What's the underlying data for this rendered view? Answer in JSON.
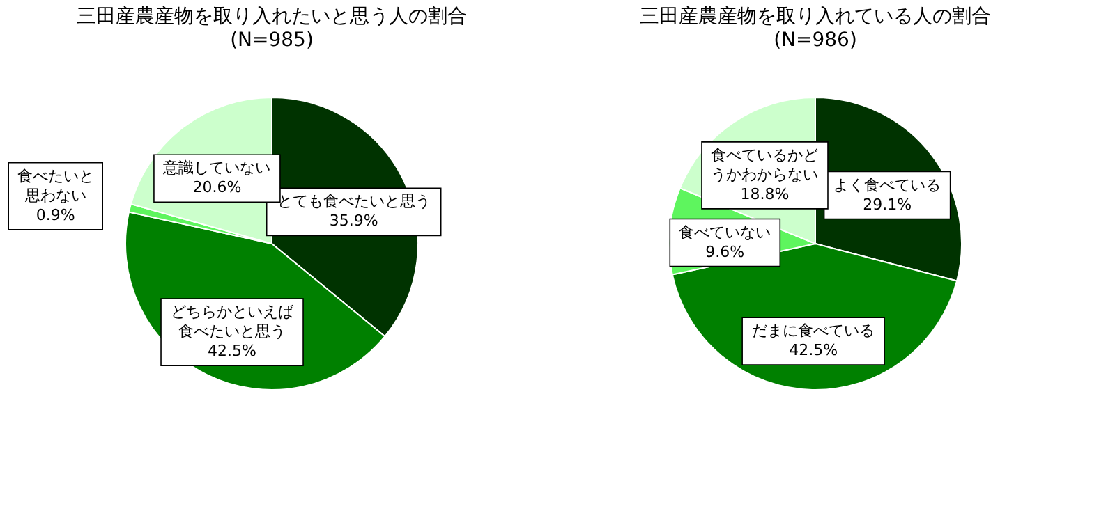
{
  "chart_data": [
    {
      "type": "pie",
      "title": "三田産農産物を取り入れたいと思う人の割合",
      "subtitle": "(N=985)",
      "categories": [
        "とても食べたいと思う",
        "どちらかといえば食べたいと思う",
        "食べたいと思わない",
        "意識していない"
      ],
      "values": [
        35.9,
        42.5,
        0.9,
        20.6
      ],
      "colors": [
        "#003300",
        "#008000",
        "#5ef55e",
        "#ccffcc"
      ],
      "value_labels": [
        "35.9%",
        "42.5%",
        "0.9%",
        "20.6%"
      ],
      "legend": false
    },
    {
      "type": "pie",
      "title": "三田産農産物を取り入れている人の割合",
      "subtitle": "(N=986)",
      "categories": [
        "よく食べている",
        "だまに食べている",
        "食べていない",
        "食べているかどうかわからない"
      ],
      "values": [
        29.1,
        42.5,
        9.6,
        18.8
      ],
      "colors": [
        "#003300",
        "#008000",
        "#5ef55e",
        "#ccffcc"
      ],
      "value_labels": [
        "29.1%",
        "42.5%",
        "9.6%",
        "18.8%"
      ],
      "legend": false
    }
  ]
}
